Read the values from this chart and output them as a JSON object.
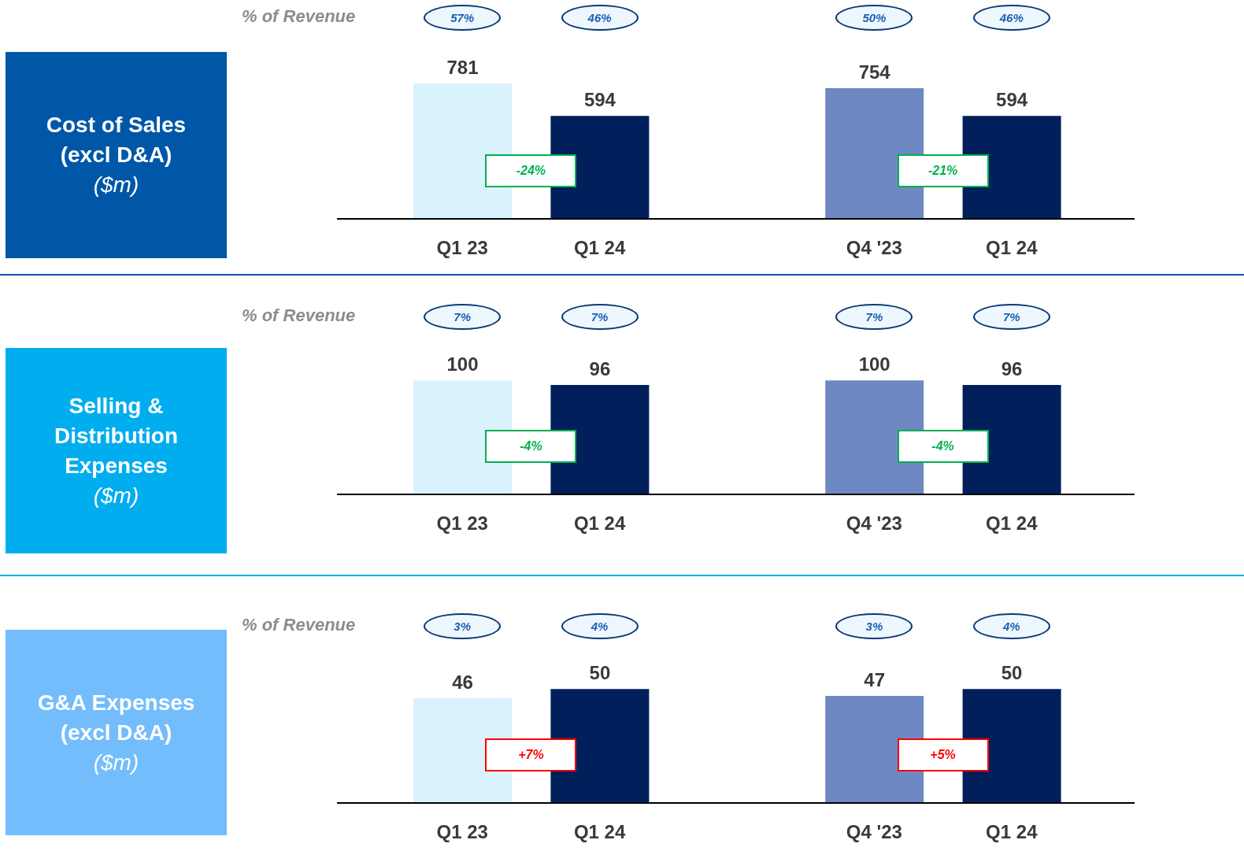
{
  "chart_data": [
    {
      "type": "other",
      "title": "Cost of Sales (excl D&A)",
      "subtitle": "($m)",
      "color": "#0057a8"
    },
    {
      "type": "bar",
      "categories": [
        "Q1 23",
        "Q1 24",
        null,
        "Q4 '23",
        "Q1 24"
      ],
      "values": [
        781,
        594,
        null,
        754,
        594
      ],
      "colors": [
        "#daf2fd",
        "#001f5b",
        null,
        "#6e88c4",
        "#001f5b"
      ],
      "data_labels": true,
      "annotations": [
        "% of Revenue",
        "57%",
        "46%",
        "50%",
        "46%",
        "-24%",
        "-21%"
      ]
    },
    {
      "type": "other",
      "title": "Selling & Distribution Expenses",
      "subtitle": "($m)",
      "color": "#00adef"
    },
    {
      "type": "bar",
      "categories": [
        "Q1 23",
        "Q1 24",
        null,
        "Q4 '23",
        "Q1 24"
      ],
      "values": [
        100,
        96,
        null,
        100,
        96
      ],
      "colors": [
        "#daf2fd",
        "#001f5b",
        null,
        "#6e88c4",
        "#001f5b"
      ],
      "data_labels": true,
      "annotations": [
        "% of Revenue",
        "7%",
        "7%",
        "7%",
        "7%",
        "-4%",
        "-4%"
      ]
    },
    {
      "type": "other",
      "title": "G&A Expenses (excl D&A)",
      "subtitle": "($m)",
      "color": "#73bdfc"
    },
    {
      "type": "bar",
      "categories": [
        "Q1 23",
        "Q1 24",
        null,
        "Q4 '23",
        "Q1 24"
      ],
      "values": [
        46,
        50,
        null,
        47,
        50
      ],
      "colors": [
        "#daf2fd",
        "#001f5b",
        null,
        "#6e88c4",
        "#001f5b"
      ],
      "data_labels": true,
      "annotations": [
        "% of Revenue",
        "3%",
        "4%",
        "3%",
        "4%",
        "+7%",
        "+5%"
      ]
    }
  ]
}
